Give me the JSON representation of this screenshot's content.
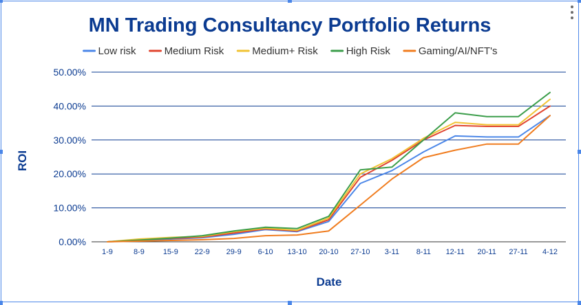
{
  "chart_data": {
    "type": "line",
    "title": "MN Trading Consultancy Portfolio Returns",
    "xlabel": "Date",
    "ylabel": "ROI",
    "ylim": [
      0,
      0.5
    ],
    "yticks": [
      "0.00%",
      "10.00%",
      "20.00%",
      "30.00%",
      "40.00%",
      "50.00%"
    ],
    "ytick_values": [
      0,
      0.1,
      0.2,
      0.3,
      0.4,
      0.5
    ],
    "categories": [
      "1-9",
      "8-9",
      "15-9",
      "22-9",
      "29-9",
      "6-10",
      "13-10",
      "20-10",
      "27-10",
      "3-11",
      "8-11",
      "12-11",
      "20-11",
      "27-11",
      "4-12"
    ],
    "legend_position": "top",
    "grid": true,
    "series": [
      {
        "name": "Low risk",
        "color": "#4a86e8",
        "values": [
          0,
          0.004,
          0.008,
          0.012,
          0.022,
          0.036,
          0.03,
          0.06,
          0.172,
          0.21,
          0.265,
          0.312,
          0.309,
          0.309,
          0.372
        ]
      },
      {
        "name": "Medium Risk",
        "color": "#e0442f",
        "values": [
          0,
          0.006,
          0.01,
          0.014,
          0.026,
          0.038,
          0.032,
          0.065,
          0.19,
          0.24,
          0.3,
          0.343,
          0.34,
          0.34,
          0.4
        ]
      },
      {
        "name": "Medium+ Risk",
        "color": "#f1c232",
        "values": [
          0,
          0.008,
          0.013,
          0.016,
          0.03,
          0.04,
          0.034,
          0.07,
          0.2,
          0.245,
          0.305,
          0.352,
          0.345,
          0.345,
          0.42
        ]
      },
      {
        "name": "High Risk",
        "color": "#3b9d4a",
        "values": [
          0,
          0.005,
          0.011,
          0.018,
          0.032,
          0.043,
          0.039,
          0.075,
          0.212,
          0.22,
          0.3,
          0.38,
          0.369,
          0.369,
          0.44
        ]
      },
      {
        "name": "Gaming/AI/NFT's",
        "color": "#f07c1e",
        "values": [
          0,
          0.002,
          0.004,
          0.006,
          0.01,
          0.018,
          0.02,
          0.032,
          0.108,
          0.185,
          0.248,
          0.27,
          0.288,
          0.288,
          0.372
        ]
      }
    ]
  }
}
